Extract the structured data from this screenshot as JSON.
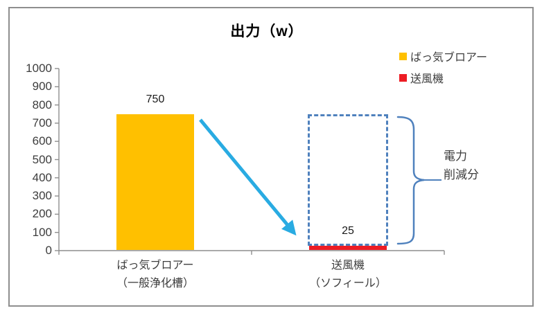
{
  "title": "出力（w）",
  "legend": [
    {
      "label": "ばっ気ブロアー",
      "color": "#FFC000"
    },
    {
      "label": "送風機",
      "color": "#ED1C24"
    }
  ],
  "annotation": {
    "line1": "電力",
    "line2": "削減分"
  },
  "chart_data": {
    "type": "bar",
    "title": "出力（w）",
    "categories": [
      {
        "line1": "ばっ気ブロアー",
        "line2": "（一般浄化槽）"
      },
      {
        "line1": "送風機",
        "line2": "（ソフィール）"
      }
    ],
    "values": [
      750,
      25
    ],
    "data_labels": [
      "750",
      "25"
    ],
    "bar_colors": [
      "#FFC000",
      "#ED1C24"
    ],
    "ylim": [
      0,
      1000
    ],
    "ytick_step": 100,
    "grid": false,
    "legend_position": "top-right",
    "axis_color": "#8e8e8e",
    "annotations": {
      "dashed_box": {
        "over_category_index": 1,
        "from_value": 25,
        "to_value": 750,
        "color": "#4F81BD"
      },
      "brace": {
        "color": "#4F81BD",
        "label_lines": [
          "電力",
          "削減分"
        ]
      },
      "arrow": {
        "meaning": "750 → 25 reduction",
        "color": "#29ABE2"
      }
    }
  }
}
